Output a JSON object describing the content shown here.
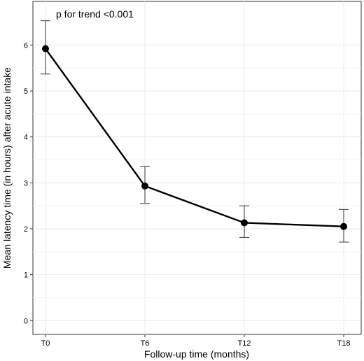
{
  "chart_data": {
    "type": "line",
    "categories": [
      "T0",
      "T6",
      "T12",
      "T18"
    ],
    "series": [
      {
        "values": [
          5.92,
          2.93,
          2.13,
          2.05
        ],
        "error_low": [
          5.37,
          2.55,
          1.81,
          1.71
        ],
        "error_high": [
          6.53,
          3.36,
          2.5,
          2.42
        ]
      }
    ],
    "xlabel": "Follow-up time (months)",
    "ylabel": "Mean latency time (in hours) after acute intake",
    "ylim": [
      -0.3,
      6.95
    ],
    "yticks": [
      0,
      1,
      2,
      3,
      4,
      5,
      6
    ],
    "annotation": "p for trend <0.001",
    "grid": true,
    "colors": {
      "line": "#000000",
      "marker": "#000000",
      "errorbar": "#555555",
      "grid": "#ebebeb",
      "frame": "#333333"
    }
  }
}
